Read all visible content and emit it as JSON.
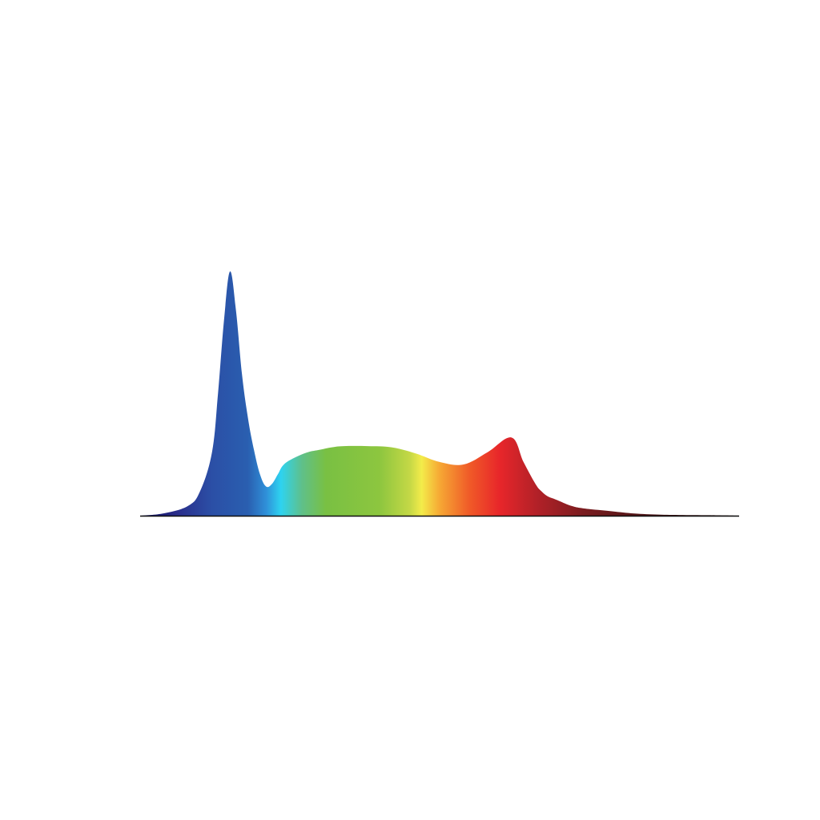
{
  "chart_data": {
    "type": "area",
    "title": "",
    "xlabel": "",
    "ylabel": "",
    "grid": false,
    "legend": "none",
    "series": [
      {
        "x": [
          0,
          4,
          8,
          10,
          12,
          13,
          14,
          15,
          16,
          17,
          18,
          19,
          20,
          21,
          22,
          23,
          24,
          26,
          28,
          30,
          32,
          34,
          38,
          42,
          46,
          50,
          54,
          58,
          62,
          64,
          66,
          67,
          68,
          69,
          70,
          72,
          74,
          78,
          82,
          86,
          90,
          95,
          100
        ],
        "y": [
          0.0,
          0.01,
          0.04,
          0.1,
          0.26,
          0.5,
          0.8,
          1.0,
          0.84,
          0.58,
          0.4,
          0.27,
          0.17,
          0.12,
          0.13,
          0.17,
          0.21,
          0.24,
          0.26,
          0.27,
          0.28,
          0.285,
          0.285,
          0.28,
          0.255,
          0.22,
          0.21,
          0.26,
          0.32,
          0.22,
          0.13,
          0.1,
          0.08,
          0.07,
          0.06,
          0.04,
          0.03,
          0.02,
          0.01,
          0.005,
          0.003,
          0.002,
          0.0
        ]
      }
    ],
    "xlim": [
      0,
      100
    ],
    "ylim": [
      0,
      1
    ]
  },
  "colors": {
    "baseline": "#111111",
    "gradient_stops": [
      {
        "offset": 0.0,
        "color": "#0a0a5a"
      },
      {
        "offset": 0.06,
        "color": "#2a2d8a"
      },
      {
        "offset": 0.12,
        "color": "#2b4fa6"
      },
      {
        "offset": 0.18,
        "color": "#2a5fb0"
      },
      {
        "offset": 0.21,
        "color": "#2f8fd8"
      },
      {
        "offset": 0.235,
        "color": "#2ed3f0"
      },
      {
        "offset": 0.27,
        "color": "#5fc08a"
      },
      {
        "offset": 0.31,
        "color": "#79c043"
      },
      {
        "offset": 0.4,
        "color": "#8dc63f"
      },
      {
        "offset": 0.45,
        "color": "#c4d846"
      },
      {
        "offset": 0.47,
        "color": "#f3ec4a"
      },
      {
        "offset": 0.5,
        "color": "#f6a834"
      },
      {
        "offset": 0.55,
        "color": "#f05a28"
      },
      {
        "offset": 0.6,
        "color": "#e8262a"
      },
      {
        "offset": 0.66,
        "color": "#b42128"
      },
      {
        "offset": 0.74,
        "color": "#7a1c1f"
      },
      {
        "offset": 0.85,
        "color": "#4a1416"
      },
      {
        "offset": 1.0,
        "color": "#1e0a0a"
      }
    ]
  }
}
